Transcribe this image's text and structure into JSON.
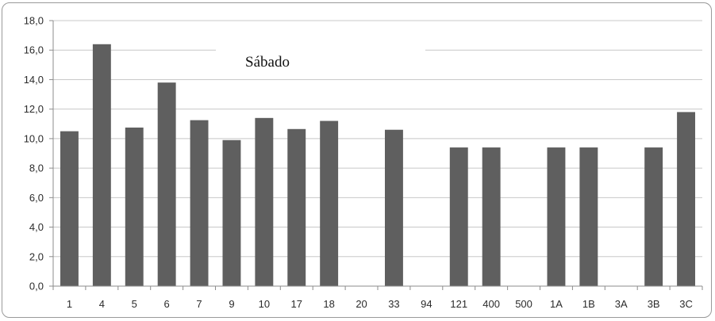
{
  "chart_data": {
    "type": "bar",
    "title": "Sábado",
    "xlabel": "",
    "ylabel": "",
    "categories": [
      "1",
      "4",
      "5",
      "6",
      "7",
      "9",
      "10",
      "17",
      "18",
      "20",
      "33",
      "94",
      "121",
      "400",
      "500",
      "1A",
      "1B",
      "3A",
      "3B",
      "3C"
    ],
    "values": [
      10.5,
      16.4,
      10.75,
      13.8,
      11.25,
      9.9,
      11.4,
      10.65,
      11.2,
      0,
      10.6,
      0,
      9.4,
      9.4,
      0,
      9.4,
      9.4,
      0,
      9.4,
      11.8
    ],
    "ylim": [
      0,
      18
    ],
    "yticks": [
      "0,0",
      "2,0",
      "4,0",
      "6,0",
      "8,0",
      "10,0",
      "12,0",
      "14,0",
      "16,0",
      "18,0"
    ],
    "grid": true,
    "legend": "none",
    "colors": {
      "bar": "#5f5f5f",
      "grid": "#c8c8c8",
      "axis": "#8c8c8c"
    }
  }
}
